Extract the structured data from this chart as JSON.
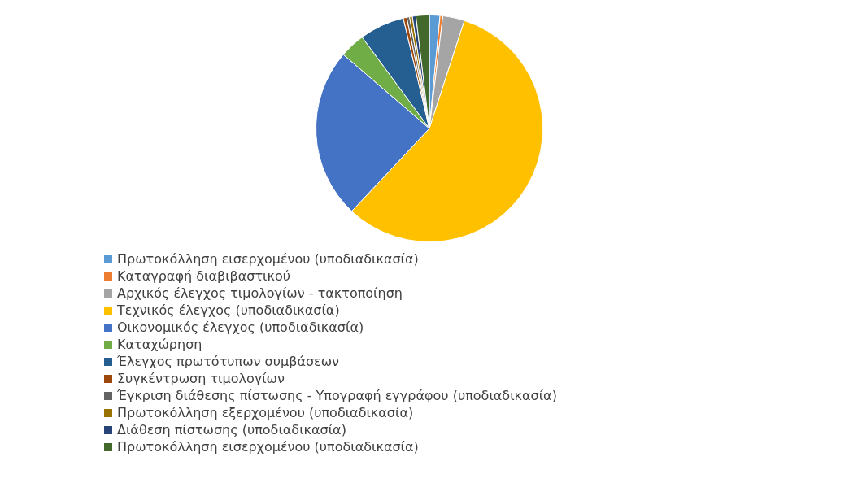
{
  "chart_data": {
    "type": "pie",
    "categories": [
      "Πρωτοκόλληση εισερχομένου (υποδιαδικασία)",
      "Καταγραφή διαβιβαστικού",
      "Αρχικός έλεγχος τιμολογίων - τακτοποίηση",
      "Τεχνικός έλεγχος (υποδιαδικασία)",
      "Οικονομικός έλεγχος (υποδιαδικασία)",
      "Καταχώρηση",
      "Έλεγχος πρωτότυπων συμβάσεων",
      "Συγκέντρωση τιμολογίων",
      "Έγκριση διάθεσης πίστωσης - Υπογραφή εγγράφου (υποδιαδικασία)",
      "Πρωτοκόλληση εξερχομένου (υποδιαδικασία)",
      "Διάθεση πίστωσης (υποδιαδικασία)",
      "Πρωτοκόλληση εισερχομένου (υποδιαδικασία)"
    ],
    "values": [
      1.5,
      0.4,
      3.1,
      57,
      24.3,
      3.6,
      6.4,
      0.5,
      0.4,
      0.4,
      0.5,
      1.9
    ],
    "colors": [
      "#5b9bd5",
      "#ed7d31",
      "#a5a5a5",
      "#ffc000",
      "#4472c4",
      "#70ad47",
      "#255e91",
      "#9e480e",
      "#636363",
      "#997300",
      "#264478",
      "#43682b"
    ],
    "legend": "bottom"
  }
}
